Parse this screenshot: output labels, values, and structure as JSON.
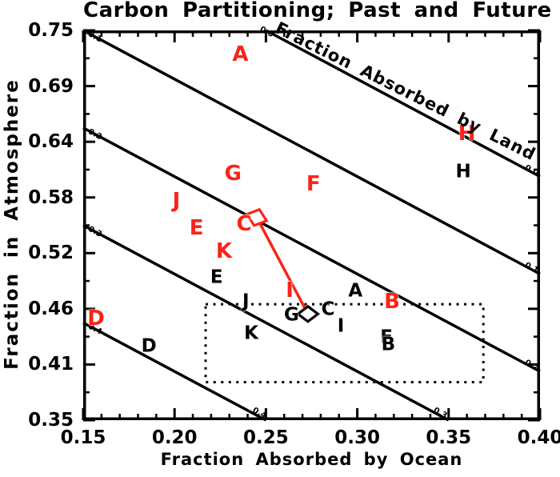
{
  "colors": {
    "red": "#fb2318",
    "black": "#000000",
    "background": "#ffffff"
  },
  "chart_data": {
    "type": "scatter",
    "title": "Carbon Partitioning; Past and Future",
    "xlabel": "Fraction Absorbed by Ocean",
    "ylabel": "Fraction in Atmosphere",
    "contour_axis_label": "Fraction Absorbed by Land",
    "xlim": [
      0.15,
      0.4
    ],
    "ylim": [
      0.35,
      0.75
    ],
    "grid": false,
    "x_tick_labels": [
      "0.15",
      "0.20",
      "0.25",
      "0.30",
      "0.35",
      "0.40"
    ],
    "x_tick_values": [
      0.15,
      0.2,
      0.25,
      0.3,
      0.35,
      0.4
    ],
    "x_minor_step": 0.01,
    "y_tick_labels": [
      "0.75",
      "0.69",
      "0.64",
      "0.58",
      "0.52",
      "0.46",
      "0.41",
      "0.35"
    ],
    "y_major_count": 8,
    "land_contours": [
      {
        "value": "0.0",
        "from": [
          0.25,
          0.75
        ],
        "to": [
          0.4,
          0.6
        ],
        "label_anchors": [
          [
            0.2505,
            0.7485
          ],
          [
            0.3955,
            0.6065
          ]
        ]
      },
      {
        "value": "0.1",
        "from": [
          0.15,
          0.75
        ],
        "to": [
          0.4,
          0.5
        ],
        "label_anchors": [
          [
            0.1565,
            0.7435
          ],
          [
            0.3955,
            0.5065
          ]
        ]
      },
      {
        "value": "0.2",
        "from": [
          0.15,
          0.65
        ],
        "to": [
          0.4,
          0.4
        ],
        "label_anchors": [
          [
            0.1565,
            0.6435
          ],
          [
            0.3955,
            0.4065
          ]
        ]
      },
      {
        "value": "0.3",
        "from": [
          0.15,
          0.55
        ],
        "to": [
          0.35,
          0.35
        ],
        "label_anchors": [
          [
            0.1565,
            0.5435
          ],
          [
            0.3455,
            0.3575
          ]
        ]
      },
      {
        "value": "0.4",
        "from": [
          0.15,
          0.45
        ],
        "to": [
          0.25,
          0.35
        ],
        "label_anchors": [
          [
            0.1565,
            0.4435
          ],
          [
            0.2465,
            0.3575
          ]
        ]
      }
    ],
    "series": [
      {
        "name": "models-red",
        "color": "#fb2318",
        "points": [
          {
            "label": "A",
            "x": 0.236,
            "y": 0.725
          },
          {
            "label": "H",
            "x": 0.36,
            "y": 0.644
          },
          {
            "label": "G",
            "x": 0.232,
            "y": 0.603
          },
          {
            "label": "F",
            "x": 0.276,
            "y": 0.592
          },
          {
            "label": "J",
            "x": 0.201,
            "y": 0.575
          },
          {
            "label": "E",
            "x": 0.212,
            "y": 0.547
          },
          {
            "label": "C",
            "x": 0.238,
            "y": 0.551
          },
          {
            "label": "K",
            "x": 0.227,
            "y": 0.523
          },
          {
            "label": "I",
            "x": 0.263,
            "y": 0.483
          },
          {
            "label": "B",
            "x": 0.319,
            "y": 0.472
          },
          {
            "label": "D",
            "x": 0.157,
            "y": 0.454
          }
        ]
      },
      {
        "name": "models-black",
        "color": "#000000",
        "points": [
          {
            "label": "H",
            "x": 0.358,
            "y": 0.605
          },
          {
            "label": "E",
            "x": 0.223,
            "y": 0.496
          },
          {
            "label": "A",
            "x": 0.299,
            "y": 0.482
          },
          {
            "label": "J",
            "x": 0.239,
            "y": 0.472
          },
          {
            "label": "C",
            "x": 0.284,
            "y": 0.463
          },
          {
            "label": "G",
            "x": 0.264,
            "y": 0.458
          },
          {
            "label": "I",
            "x": 0.291,
            "y": 0.446
          },
          {
            "label": "K",
            "x": 0.242,
            "y": 0.439
          },
          {
            "label": "F",
            "x": 0.316,
            "y": 0.435
          },
          {
            "label": "B",
            "x": 0.317,
            "y": 0.427
          },
          {
            "label": "D",
            "x": 0.186,
            "y": 0.426
          }
        ]
      }
    ],
    "markers": {
      "red_diamond": {
        "x": 0.245,
        "y": 0.558
      },
      "black_diamond": {
        "x": 0.273,
        "y": 0.459
      }
    },
    "connector": {
      "from": [
        0.245,
        0.558
      ],
      "to": [
        0.273,
        0.459
      ],
      "color": "#fb2318"
    },
    "dotted_box": {
      "x_min": 0.217,
      "x_max": 0.369,
      "y_min": 0.389,
      "y_max": 0.469
    }
  }
}
